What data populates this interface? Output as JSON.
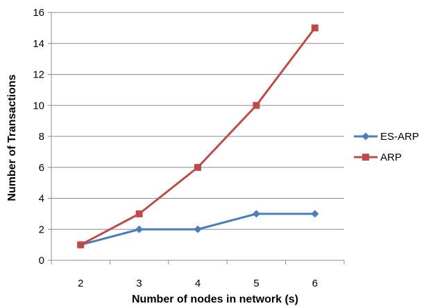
{
  "chart_data": {
    "type": "line",
    "title": "",
    "xlabel": "Number of nodes in network (s)",
    "ylabel": "Number of Transactions",
    "categories": [
      "2",
      "3",
      "4",
      "5",
      "6"
    ],
    "ylim": [
      0,
      16
    ],
    "yticks": [
      0,
      2,
      4,
      6,
      8,
      10,
      12,
      14,
      16
    ],
    "grid": "horizontal",
    "legend_position": "right",
    "series": [
      {
        "name": "ES-ARP",
        "color": "#4A7EBB",
        "marker": "diamond",
        "values": [
          1,
          2,
          2,
          3,
          3
        ]
      },
      {
        "name": "ARP",
        "color": "#BE4B48",
        "marker": "square",
        "values": [
          1,
          3,
          6,
          10,
          15
        ]
      }
    ]
  }
}
